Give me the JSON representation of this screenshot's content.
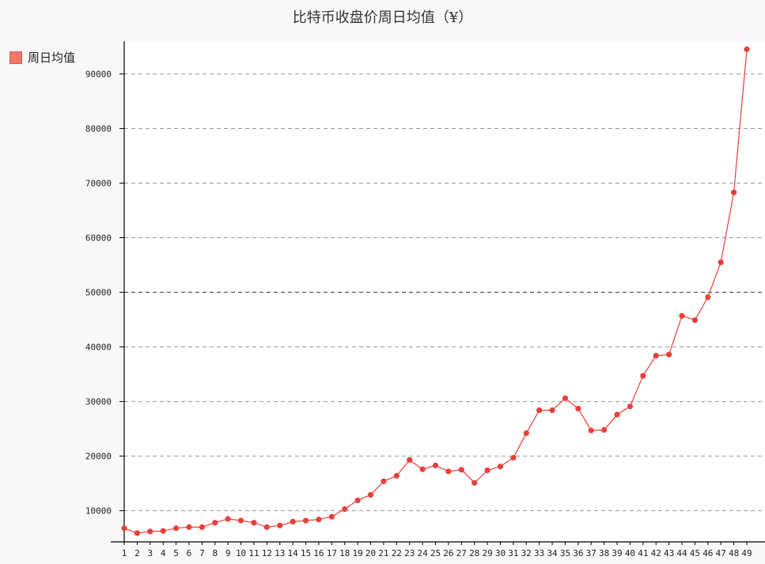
{
  "chart_data": {
    "type": "line",
    "title": "比特币收盘价周日均值（¥）",
    "xlabel": "",
    "ylabel": "",
    "grid": true,
    "legend_position": "top-left",
    "ylim": [
      4300,
      96000
    ],
    "y_ticks": [
      10000,
      20000,
      30000,
      40000,
      50000,
      60000,
      70000,
      80000,
      90000
    ],
    "y_tick_labels": [
      "10000",
      "20000",
      "30000",
      "40000",
      "50000",
      "60000",
      "70000",
      "80000",
      "90000"
    ],
    "x": [
      "1",
      "2",
      "3",
      "4",
      "5",
      "6",
      "7",
      "8",
      "9",
      "10",
      "11",
      "12",
      "13",
      "14",
      "15",
      "16",
      "17",
      "18",
      "19",
      "20",
      "21",
      "22",
      "23",
      "24",
      "25",
      "26",
      "27",
      "28",
      "29",
      "30",
      "31",
      "32",
      "33",
      "34",
      "35",
      "36",
      "37",
      "38",
      "39",
      "40",
      "41",
      "42",
      "43",
      "44",
      "45",
      "46",
      "47",
      "48",
      "49"
    ],
    "series": [
      {
        "name": "周日均值",
        "color": "#e8403a",
        "values": [
          6800,
          5900,
          6200,
          6300,
          6800,
          7000,
          7000,
          7800,
          8500,
          8200,
          7800,
          7000,
          7300,
          8000,
          8200,
          8400,
          8900,
          10300,
          11900,
          12900,
          15400,
          16400,
          19300,
          17600,
          18300,
          17200,
          17500,
          15100,
          17400,
          18100,
          19700,
          24200,
          28400,
          28400,
          30600,
          28700,
          24700,
          24800,
          27600,
          29100,
          34700,
          38400,
          38600,
          45700,
          44900,
          49100,
          55500,
          68300,
          94500
        ]
      }
    ]
  }
}
